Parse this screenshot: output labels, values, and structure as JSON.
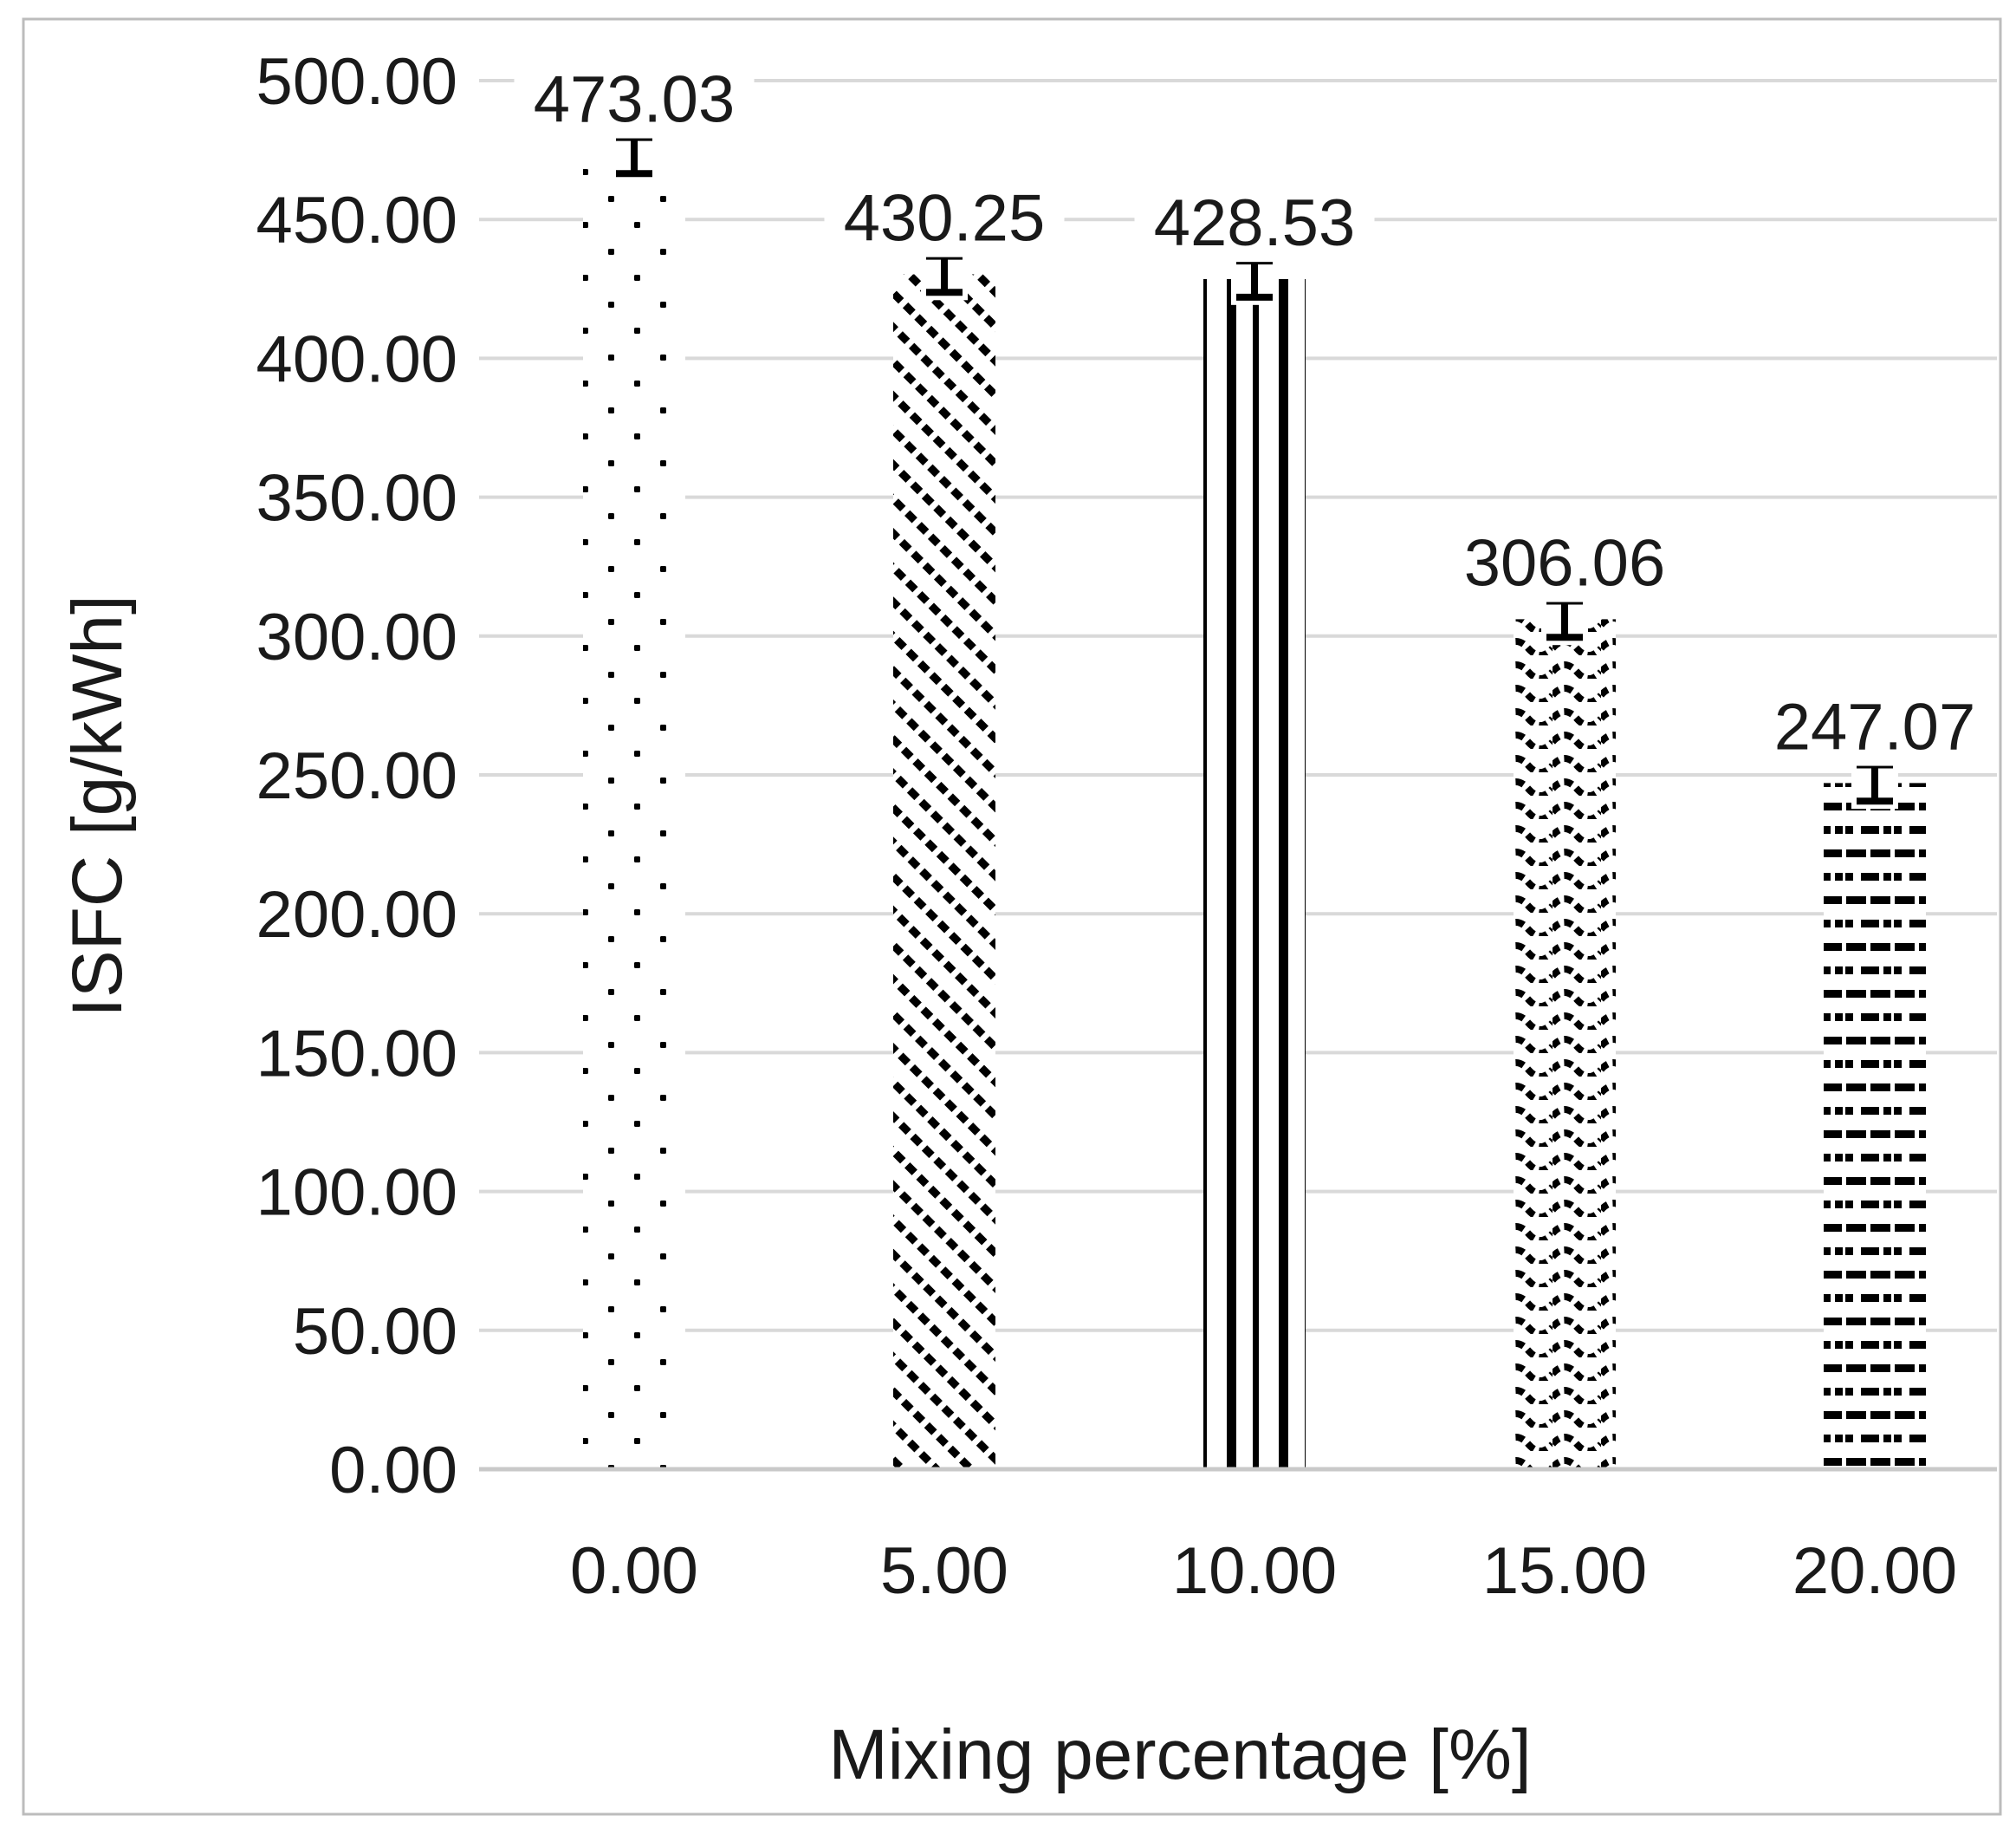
{
  "chart_data": {
    "type": "bar",
    "title": "",
    "categories": [
      "0.00",
      "5.00",
      "10.00",
      "15.00",
      "20.00"
    ],
    "values": [
      473.03,
      430.25,
      428.53,
      306.06,
      247.07
    ],
    "data_labels": [
      "473.03",
      "430.25",
      "428.53",
      "306.06",
      "247.07"
    ],
    "error_bar_halfwidth_est": 6.5,
    "bar_patterns": [
      "dots",
      "diagonal-hatch",
      "vertical-stripes",
      "wavy-lines",
      "horizontal-dashes"
    ],
    "xlabel": "Mixing percentage [%]",
    "ylabel": "ISFC [g/kWh]",
    "ylim": [
      0,
      500
    ],
    "ytick_step": 50,
    "ytick_labels": [
      "0.00",
      "50.00",
      "100.00",
      "150.00",
      "200.00",
      "250.00",
      "300.00",
      "350.00",
      "400.00",
      "450.00",
      "500.00"
    ],
    "grid": true,
    "legend": false
  },
  "styles": {
    "background": "#ffffff",
    "frame_color": "#bcbcbc",
    "grid_color": "#d9d9d9",
    "axis_line_color": "#c9c9c9",
    "text_color": "#1a1a1a",
    "bar_fill": "#ffffff",
    "bar_pattern_color": "#000000",
    "error_bar_color": "#000000"
  }
}
